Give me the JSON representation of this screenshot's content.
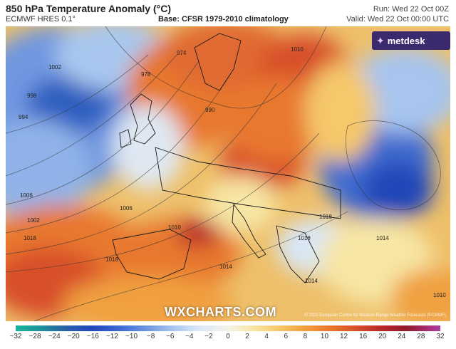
{
  "header": {
    "title": "850 hPa Temperature Anomaly (°C)",
    "model": "ECMWF HRES 0.1°",
    "base": "Base: CFSR 1979-2010 climatology",
    "run": "Run: Wed 22 Oct 00Z",
    "valid": "Valid: Wed 22 Oct 00:00 UTC"
  },
  "branding": {
    "logo_text": "metdesk",
    "watermark": "WXCHARTS.COM",
    "copyright": "© 2025 European Centre for Medium-Range Weather Forecasts (ECMWF)"
  },
  "map": {
    "isobar_labels": [
      "1002",
      "998",
      "994",
      "1006",
      "1002",
      "1006",
      "1010",
      "1014",
      "1018",
      "1018",
      "1010",
      "990",
      "978",
      "974",
      "1014",
      "1018",
      "1018",
      "1010",
      "1014"
    ]
  },
  "legend": {
    "ticks": [
      "−32",
      "−28",
      "−24",
      "−20",
      "−16",
      "−12",
      "−10",
      "−8",
      "−6",
      "−4",
      "−2",
      "0",
      "2",
      "4",
      "6",
      "8",
      "10",
      "12",
      "16",
      "20",
      "24",
      "28",
      "32"
    ],
    "colors": {
      "cold_extreme": "#1ab39c",
      "very_cold": "#2246b8",
      "cold": "#6f97e0",
      "neutral": "#f4f2e8",
      "warm": "#f5c86a",
      "hot": "#e8782e",
      "very_hot": "#b8282a",
      "warm_extreme": "#b03aa0"
    }
  }
}
